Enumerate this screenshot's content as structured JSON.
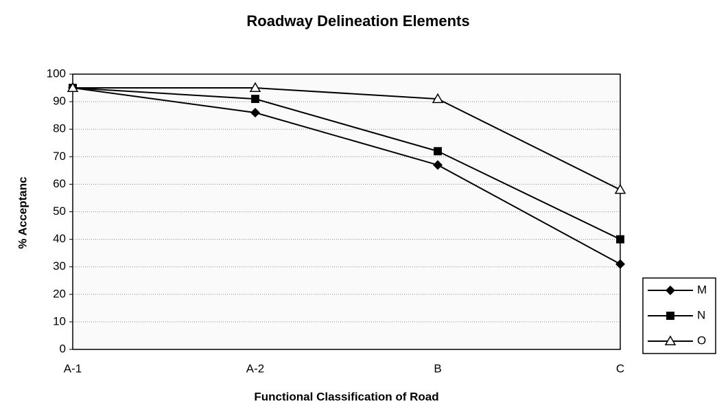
{
  "chart_data": {
    "type": "line",
    "title": "Roadway Delineation Elements",
    "x_label": "Functional Classification of Road",
    "y_label": "% Acceptanc",
    "categories": [
      "A-1",
      "A-2",
      "B",
      "C"
    ],
    "series": [
      {
        "name": "M",
        "color": "#000000",
        "marker": "diamond",
        "values": [
          95,
          86,
          67,
          31
        ]
      },
      {
        "name": "N",
        "color": "#000000",
        "marker": "square",
        "values": [
          95,
          91,
          72,
          40
        ]
      },
      {
        "name": "O",
        "color": "#000000",
        "marker": "triangle",
        "values": [
          95,
          95,
          91,
          58
        ]
      }
    ],
    "ylim": [
      0,
      100
    ],
    "yticks": [
      0,
      10,
      20,
      30,
      40,
      50,
      60,
      70,
      80,
      90,
      100
    ],
    "grid": true,
    "legend": "right"
  }
}
